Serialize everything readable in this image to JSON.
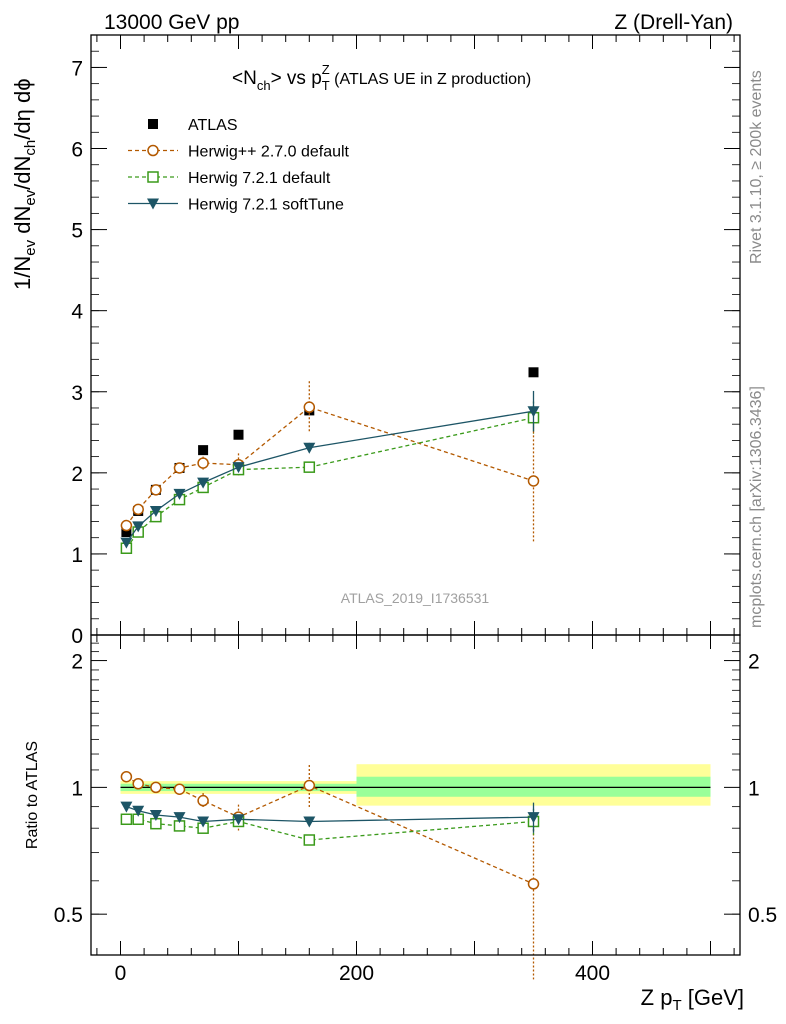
{
  "header": {
    "energy_label": "13000 GeV pp",
    "process_label": "Z (Drell-Yan)"
  },
  "side_labels": {
    "rivet": "Rivet 3.1.10, ≥ 200k events",
    "mcplots": "mcplots.cern.ch [arXiv:1306.3436]"
  },
  "watermark": "ATLAS_2019_I1736531",
  "colors": {
    "atlas": "#000000",
    "herwigpp": "#b35900",
    "herwig721": "#3a9a1a",
    "softtune": "#1d5566",
    "band_inner": "#99ff99",
    "band_outer": "#ffff99"
  },
  "chart_data": [
    {
      "type": "scatter",
      "title_parts": [
        "<N",
        "ch",
        "> vs p",
        "T",
        "Z",
        " (ATLAS UE in Z production)"
      ],
      "ylabel_parts": [
        "1/N",
        "ev",
        " dN",
        "ev",
        "/dN",
        "ch",
        "/dη dϕ"
      ],
      "xlim": [
        -25,
        525
      ],
      "ylim": [
        0,
        7.4
      ],
      "y_ticks": [
        0,
        1,
        2,
        3,
        4,
        5,
        6,
        7
      ],
      "y_tick_labels": [
        "0",
        "1",
        "2",
        "3",
        "4",
        "5",
        "6",
        "7"
      ],
      "legend": [
        "ATLAS",
        "Herwig++ 2.7.0 default",
        "Herwig 7.2.1 default",
        "Herwig 7.2.1 softTune"
      ],
      "x": [
        5,
        15,
        30,
        50,
        70,
        100,
        160,
        350
      ],
      "series": [
        {
          "name": "ATLAS",
          "key": "atlas",
          "values": [
            1.27,
            1.53,
            1.79,
            2.06,
            2.28,
            2.47,
            2.77,
            3.24
          ]
        },
        {
          "name": "Herwig++ 2.7.0 default",
          "key": "herwigpp",
          "values": [
            1.35,
            1.55,
            1.79,
            2.06,
            2.12,
            2.1,
            2.81,
            1.9
          ],
          "errors": [
            0.02,
            0.02,
            0.02,
            0.03,
            0.08,
            0.14,
            0.32,
            0.76
          ]
        },
        {
          "name": "Herwig 7.2.1 default",
          "key": "herwig721",
          "values": [
            1.07,
            1.27,
            1.46,
            1.67,
            1.82,
            2.04,
            2.07,
            2.68
          ],
          "errors": [
            0.01,
            0.01,
            0.01,
            0.02,
            0.02,
            0.03,
            0.05,
            0.2
          ]
        },
        {
          "name": "Herwig 7.2.1 softTune",
          "key": "softtune",
          "values": [
            1.14,
            1.34,
            1.53,
            1.74,
            1.88,
            2.07,
            2.31,
            2.76
          ],
          "errors": [
            0.01,
            0.01,
            0.01,
            0.02,
            0.02,
            0.03,
            0.06,
            0.25
          ]
        }
      ]
    },
    {
      "type": "line",
      "ylabel": "Ratio to ATLAS",
      "xlabel_parts": [
        "Z p",
        "T",
        " [GeV]"
      ],
      "xlim": [
        -25,
        525
      ],
      "ylim": [
        0.4,
        2.3
      ],
      "log_y": true,
      "y_ticks": [
        0.5,
        1,
        2
      ],
      "y_tick_labels": [
        "0.5",
        "1",
        "2"
      ],
      "x_ticks": [
        0,
        200,
        400
      ],
      "x_tick_labels": [
        "0",
        "200",
        "400"
      ],
      "x": [
        5,
        15,
        30,
        50,
        70,
        100,
        160,
        350
      ],
      "bands": [
        {
          "x0": 0,
          "x1": 200,
          "inner": [
            0.98,
            1.02
          ],
          "outer": [
            0.965,
            1.035
          ]
        },
        {
          "x0": 200,
          "x1": 500,
          "inner": [
            0.95,
            1.06
          ],
          "outer": [
            0.905,
            1.135
          ]
        }
      ],
      "series": [
        {
          "name": "Herwig++ 2.7.0 default",
          "key": "herwigpp",
          "values": [
            1.06,
            1.02,
            1.0,
            0.99,
            0.93,
            0.85,
            1.01,
            0.59
          ],
          "errors": [
            0.01,
            0.01,
            0.01,
            0.01,
            0.04,
            0.06,
            0.12,
            0.24
          ]
        },
        {
          "name": "Herwig 7.2.1 default",
          "key": "herwig721",
          "values": [
            0.84,
            0.84,
            0.82,
            0.81,
            0.8,
            0.83,
            0.75,
            0.83
          ],
          "errors": [
            0.01,
            0.01,
            0.01,
            0.01,
            0.01,
            0.01,
            0.02,
            0.06
          ]
        },
        {
          "name": "Herwig 7.2.1 softTune",
          "key": "softtune",
          "values": [
            0.9,
            0.88,
            0.86,
            0.85,
            0.83,
            0.84,
            0.83,
            0.85
          ],
          "errors": [
            0.01,
            0.01,
            0.01,
            0.01,
            0.01,
            0.01,
            0.02,
            0.07
          ]
        }
      ]
    }
  ]
}
